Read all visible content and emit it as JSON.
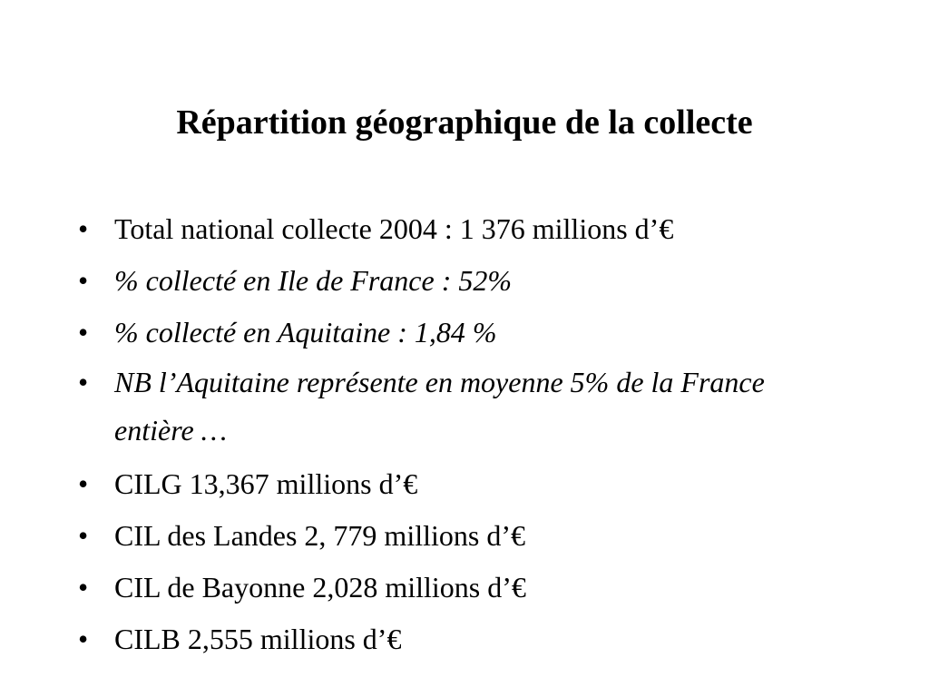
{
  "slide": {
    "title": "Répartition géographique de la collecte",
    "bullets": [
      {
        "text": "Total national collecte 2004 : 1 376 millions d’€",
        "italic": false
      },
      {
        "text": "% collecté en Ile de France : 52%",
        "italic": true
      },
      {
        "text": "% collecté en Aquitaine : 1,84 %",
        "italic": true
      },
      {
        "text": "NB l’Aquitaine représente en moyenne 5% de la France entière …",
        "italic": true
      },
      {
        "text": "CILG 13,367 millions d’€",
        "italic": false
      },
      {
        "text": "CIL des Landes 2, 779 millions d’€",
        "italic": false
      },
      {
        "text": "CIL de Bayonne 2,028 millions d’€",
        "italic": false
      },
      {
        "text": "CILB  2,555 millions d’€",
        "italic": false
      }
    ],
    "bullet_glyph": "•"
  }
}
